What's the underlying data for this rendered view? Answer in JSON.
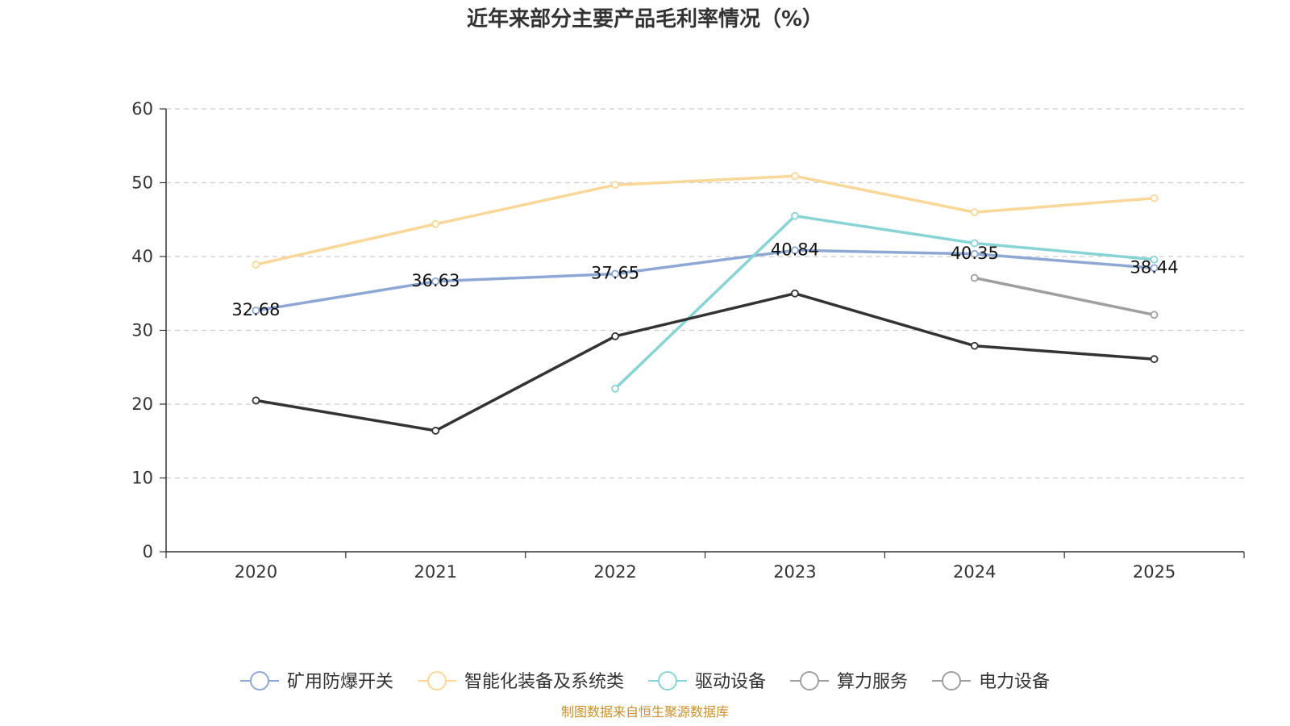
{
  "chart_data": {
    "type": "line",
    "title": "近年来部分主要产品毛利率情况（%）",
    "categories": [
      "2020",
      "2021",
      "2022",
      "2023",
      "2024",
      "2025"
    ],
    "ylim": [
      0,
      60
    ],
    "yticks": [
      0,
      10,
      20,
      30,
      40,
      50,
      60
    ],
    "grid": true,
    "legend_position": "bottom",
    "series": [
      {
        "name": "矿用防爆开关",
        "color": "#8ea8d5",
        "values": [
          32.68,
          36.63,
          37.65,
          40.84,
          40.35,
          38.44
        ],
        "labels": [
          "32.68",
          "36.63",
          "37.65",
          "40.84",
          "40.35",
          "38.44"
        ]
      },
      {
        "name": "智能化装备及系统类",
        "color": "#f9d798",
        "values": [
          38.9,
          44.4,
          49.7,
          50.9,
          46.0,
          47.9
        ]
      },
      {
        "name": "驱动设备",
        "color": "#88d4d5",
        "values": [
          null,
          null,
          22.1,
          45.5,
          41.8,
          39.6
        ]
      },
      {
        "name": "算力服务",
        "color": "#333333",
        "values": [
          20.5,
          16.4,
          29.2,
          35.0,
          27.9,
          26.1
        ]
      },
      {
        "name": "电力设备",
        "color": "#9f9f9f",
        "values": [
          null,
          null,
          null,
          null,
          37.1,
          32.1
        ]
      }
    ],
    "source": "制图数据来自恒生聚源数据库"
  }
}
